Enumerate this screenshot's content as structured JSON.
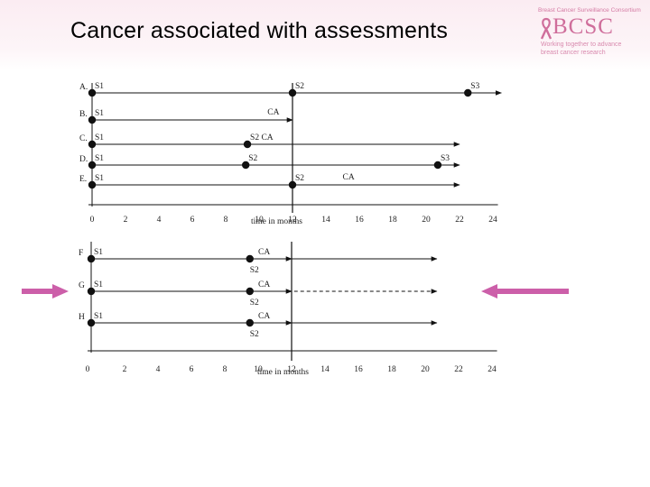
{
  "title": "Cancer associated with assessments",
  "logo": {
    "tagline": "Breast Cancer Surveillance Consortium",
    "name": "BCSC",
    "subtitle_line1": "Working together to advance",
    "subtitle_line2": "breast cancer research",
    "color": "#cf6e9b"
  },
  "panels": [
    {
      "id": "top",
      "axis_label": "time in months",
      "ticks": [
        "0",
        "2",
        "4",
        "6",
        "8",
        "10",
        "12",
        "14",
        "16",
        "18",
        "20",
        "22",
        "24"
      ],
      "rows": [
        {
          "id": "A",
          "label": "A.",
          "points": [
            {
              "t": 0,
              "text": "S1"
            },
            {
              "t": 12,
              "text": "S2"
            },
            {
              "t": 22.5,
              "text": "S3"
            }
          ],
          "ca": null,
          "end": 24.5,
          "dashed": false
        },
        {
          "id": "B",
          "label": "B.",
          "points": [
            {
              "t": 0,
              "text": "S1"
            }
          ],
          "ca": {
            "t": 10.5,
            "text": "CA"
          },
          "end": 12,
          "dashed": false
        },
        {
          "id": "C",
          "label": "C.",
          "points": [
            {
              "t": 0,
              "text": "S1"
            },
            {
              "t": 9.3,
              "text": "S2 CA"
            }
          ],
          "ca": null,
          "end": 22,
          "dashed": false
        },
        {
          "id": "D",
          "label": "D.",
          "points": [
            {
              "t": 0,
              "text": "S1"
            },
            {
              "t": 9.2,
              "text": "S2"
            },
            {
              "t": 20.7,
              "text": "S3"
            }
          ],
          "ca": null,
          "end": 22,
          "dashed": false
        },
        {
          "id": "E",
          "label": "E.",
          "points": [
            {
              "t": 0,
              "text": "S1"
            },
            {
              "t": 12,
              "text": "S2"
            }
          ],
          "ca": {
            "t": 15,
            "text": "CA"
          },
          "end": 22,
          "dashed": false
        }
      ]
    },
    {
      "id": "bottom",
      "axis_label": "time in months",
      "ticks": [
        "0",
        "2",
        "4",
        "6",
        "8",
        "10",
        "12",
        "14",
        "16",
        "18",
        "20",
        "22",
        "24"
      ],
      "rows": [
        {
          "id": "F",
          "label": "F",
          "points": [
            {
              "t": 0,
              "text": "S1"
            },
            {
              "t": 9.5,
              "text": "S2"
            }
          ],
          "ca": {
            "t": 10,
            "text": "CA"
          },
          "end": 20.7,
          "dashed": false,
          "dashed_from": null
        },
        {
          "id": "G",
          "label": "G",
          "points": [
            {
              "t": 0,
              "text": "S1"
            },
            {
              "t": 9.5,
              "text": "S2"
            }
          ],
          "ca": {
            "t": 10,
            "text": "CA"
          },
          "end": 20.7,
          "dashed": true,
          "dashed_from": 9.5
        },
        {
          "id": "H",
          "label": "H",
          "points": [
            {
              "t": 0,
              "text": "S1"
            },
            {
              "t": 9.5,
              "text": "S2"
            }
          ],
          "ca": {
            "t": 10,
            "text": "CA"
          },
          "end": 20.7,
          "dashed": false,
          "dashed_from": null
        }
      ]
    }
  ],
  "highlight_arrows": {
    "target_row": "G",
    "color": "#cc5fa9"
  }
}
